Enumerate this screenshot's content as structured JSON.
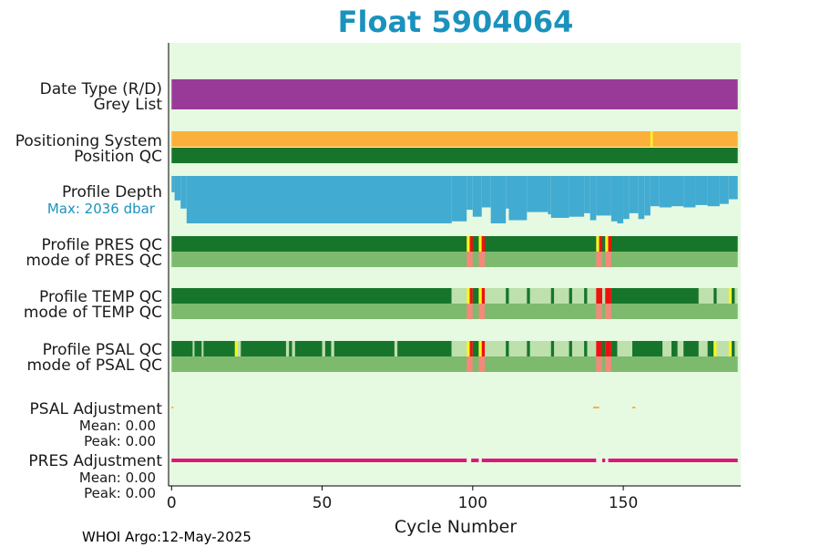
{
  "chart_data": {
    "type": "status-strip",
    "title": "Float 5904064",
    "xlabel": "Cycle Number",
    "xlim": [
      -1,
      189
    ],
    "xticks": [
      0,
      50,
      100,
      150
    ],
    "footer": "WHOI Argo:12-May-2025",
    "colors": {
      "background": "#e6f9e1",
      "purple": "#993a98",
      "orange": "#fbb03b",
      "dark_green": "#17752b",
      "light_green": "#7dba6e",
      "pale_green": "#bde0ad",
      "red": "#ee1010",
      "salmon": "#f3897a",
      "yellow": "#f7f520",
      "blue": "#42abd1",
      "magenta": "#e0157a"
    },
    "labels": {
      "date_type": "Date Type (R/D)",
      "grey_list": "Grey List",
      "positioning": "Positioning System",
      "position_qc": "Position QC",
      "profile_depth": "Profile Depth",
      "max_depth": "Max: 2036 dbar",
      "pres_qc": "Profile PRES QC",
      "pres_mode": "mode of PRES QC",
      "temp_qc": "Profile TEMP QC",
      "temp_mode": "mode of TEMP QC",
      "psal_qc": "Profile PSAL QC",
      "psal_mode": "mode of PSAL QC",
      "psal_adj": "PSAL Adjustment",
      "psal_mean": "Mean: 0.00",
      "psal_peak": "Peak: 0.00",
      "pres_adj": "PRES Adjustment",
      "pres_mean": "Mean: 0.00",
      "pres_peak": "Peak: 0.00"
    },
    "rows": {
      "date_type": [
        {
          "from": 0,
          "to": 188,
          "color": "purple"
        }
      ],
      "positioning": [
        {
          "from": 0,
          "to": 188,
          "color": "orange"
        },
        {
          "from": 159,
          "to": 159.8,
          "color": "yellow"
        }
      ],
      "position_qc": [
        {
          "from": 0,
          "to": 188,
          "color": "dark_green"
        }
      ],
      "pres_qc": [
        {
          "from": 0,
          "to": 188,
          "color": "dark_green"
        },
        {
          "from": 98,
          "to": 99,
          "color": "yellow"
        },
        {
          "from": 99,
          "to": 100,
          "color": "red"
        },
        {
          "from": 102,
          "to": 103,
          "color": "yellow"
        },
        {
          "from": 103,
          "to": 104,
          "color": "red"
        },
        {
          "from": 141,
          "to": 142,
          "color": "yellow"
        },
        {
          "from": 142,
          "to": 143,
          "color": "red"
        },
        {
          "from": 144,
          "to": 145,
          "color": "yellow"
        },
        {
          "from": 145,
          "to": 146,
          "color": "red"
        }
      ],
      "pres_mode": [
        {
          "from": 0,
          "to": 188,
          "color": "light_green"
        },
        {
          "from": 98,
          "to": 100,
          "color": "salmon"
        },
        {
          "from": 102,
          "to": 104,
          "color": "salmon"
        },
        {
          "from": 141,
          "to": 143,
          "color": "salmon"
        },
        {
          "from": 144,
          "to": 146,
          "color": "salmon"
        }
      ],
      "temp_qc": [
        {
          "from": 0,
          "to": 93,
          "color": "dark_green"
        },
        {
          "from": 93,
          "to": 188,
          "color": "pale_green"
        },
        {
          "from": 98,
          "to": 99,
          "color": "yellow"
        },
        {
          "from": 99,
          "to": 100,
          "color": "red"
        },
        {
          "from": 100,
          "to": 102,
          "color": "dark_green"
        },
        {
          "from": 102,
          "to": 103,
          "color": "yellow"
        },
        {
          "from": 103,
          "to": 104,
          "color": "red"
        },
        {
          "from": 111,
          "to": 112,
          "color": "dark_green"
        },
        {
          "from": 118,
          "to": 119,
          "color": "dark_green"
        },
        {
          "from": 126,
          "to": 127,
          "color": "dark_green"
        },
        {
          "from": 132,
          "to": 133,
          "color": "dark_green"
        },
        {
          "from": 137,
          "to": 138,
          "color": "dark_green"
        },
        {
          "from": 141,
          "to": 143,
          "color": "red"
        },
        {
          "from": 144,
          "to": 146,
          "color": "red"
        },
        {
          "from": 146,
          "to": 175,
          "color": "dark_green"
        },
        {
          "from": 180,
          "to": 181,
          "color": "dark_green"
        },
        {
          "from": 185,
          "to": 186,
          "color": "yellow"
        },
        {
          "from": 186,
          "to": 187,
          "color": "dark_green"
        }
      ],
      "temp_mode": [
        {
          "from": 0,
          "to": 188,
          "color": "light_green"
        },
        {
          "from": 98,
          "to": 100,
          "color": "salmon"
        },
        {
          "from": 102,
          "to": 104,
          "color": "salmon"
        },
        {
          "from": 141,
          "to": 143,
          "color": "salmon"
        },
        {
          "from": 144,
          "to": 146,
          "color": "salmon"
        }
      ],
      "psal_qc": [
        {
          "from": 0,
          "to": 93,
          "color": "dark_green"
        },
        {
          "from": 93,
          "to": 188,
          "color": "pale_green"
        },
        {
          "from": 7,
          "to": 7.6,
          "color": "pale_green"
        },
        {
          "from": 10,
          "to": 10.6,
          "color": "pale_green"
        },
        {
          "from": 21,
          "to": 22,
          "color": "yellow"
        },
        {
          "from": 22,
          "to": 23,
          "color": "pale_green"
        },
        {
          "from": 38,
          "to": 39,
          "color": "pale_green"
        },
        {
          "from": 40,
          "to": 41,
          "color": "pale_green"
        },
        {
          "from": 50,
          "to": 51,
          "color": "pale_green"
        },
        {
          "from": 53,
          "to": 54,
          "color": "pale_green"
        },
        {
          "from": 74,
          "to": 75,
          "color": "pale_green"
        },
        {
          "from": 98,
          "to": 99,
          "color": "yellow"
        },
        {
          "from": 99,
          "to": 100,
          "color": "red"
        },
        {
          "from": 100,
          "to": 102,
          "color": "dark_green"
        },
        {
          "from": 102,
          "to": 103,
          "color": "yellow"
        },
        {
          "from": 103,
          "to": 104,
          "color": "red"
        },
        {
          "from": 111,
          "to": 112,
          "color": "dark_green"
        },
        {
          "from": 118,
          "to": 119,
          "color": "dark_green"
        },
        {
          "from": 126,
          "to": 127,
          "color": "dark_green"
        },
        {
          "from": 132,
          "to": 133,
          "color": "dark_green"
        },
        {
          "from": 137,
          "to": 138,
          "color": "dark_green"
        },
        {
          "from": 141,
          "to": 143,
          "color": "red"
        },
        {
          "from": 143,
          "to": 144,
          "color": "dark_green"
        },
        {
          "from": 144,
          "to": 146,
          "color": "red"
        },
        {
          "from": 146,
          "to": 148,
          "color": "dark_green"
        },
        {
          "from": 153,
          "to": 163,
          "color": "dark_green"
        },
        {
          "from": 166,
          "to": 168,
          "color": "dark_green"
        },
        {
          "from": 170,
          "to": 175,
          "color": "dark_green"
        },
        {
          "from": 178,
          "to": 180,
          "color": "dark_green"
        },
        {
          "from": 180,
          "to": 181,
          "color": "yellow"
        },
        {
          "from": 185,
          "to": 186,
          "color": "yellow"
        },
        {
          "from": 186,
          "to": 187,
          "color": "dark_green"
        }
      ],
      "psal_mode": [
        {
          "from": 0,
          "to": 188,
          "color": "light_green"
        },
        {
          "from": 98,
          "to": 100,
          "color": "salmon"
        },
        {
          "from": 102,
          "to": 104,
          "color": "salmon"
        },
        {
          "from": 141,
          "to": 143,
          "color": "salmon"
        },
        {
          "from": 144,
          "to": 146,
          "color": "salmon"
        }
      ]
    },
    "profile_depth_dbar": {
      "max": 2036,
      "breakpoints": [
        {
          "from": 0,
          "to": 1,
          "depth": 700
        },
        {
          "from": 1,
          "to": 3,
          "depth": 1050
        },
        {
          "from": 3,
          "to": 5,
          "depth": 1400
        },
        {
          "from": 5,
          "to": 93,
          "depth": 2036
        },
        {
          "from": 93,
          "to": 98,
          "depth": 1950
        },
        {
          "from": 98,
          "to": 100,
          "depth": 1450
        },
        {
          "from": 100,
          "to": 103,
          "depth": 1750
        },
        {
          "from": 103,
          "to": 106,
          "depth": 1350
        },
        {
          "from": 106,
          "to": 111,
          "depth": 2036
        },
        {
          "from": 111,
          "to": 112,
          "depth": 1400
        },
        {
          "from": 112,
          "to": 118,
          "depth": 1900
        },
        {
          "from": 118,
          "to": 125,
          "depth": 1550
        },
        {
          "from": 125,
          "to": 126,
          "depth": 1650
        },
        {
          "from": 126,
          "to": 132,
          "depth": 1800
        },
        {
          "from": 132,
          "to": 137,
          "depth": 1750
        },
        {
          "from": 137,
          "to": 139,
          "depth": 1600
        },
        {
          "from": 139,
          "to": 141,
          "depth": 1900
        },
        {
          "from": 141,
          "to": 146,
          "depth": 1700
        },
        {
          "from": 146,
          "to": 148,
          "depth": 1950
        },
        {
          "from": 148,
          "to": 150,
          "depth": 2036
        },
        {
          "from": 150,
          "to": 152,
          "depth": 1850
        },
        {
          "from": 152,
          "to": 155,
          "depth": 1600
        },
        {
          "from": 155,
          "to": 157,
          "depth": 1850
        },
        {
          "from": 157,
          "to": 159,
          "depth": 1700
        },
        {
          "from": 159,
          "to": 162,
          "depth": 1300
        },
        {
          "from": 162,
          "to": 166,
          "depth": 1350
        },
        {
          "from": 166,
          "to": 170,
          "depth": 1300
        },
        {
          "from": 170,
          "to": 174,
          "depth": 1350
        },
        {
          "from": 174,
          "to": 178,
          "depth": 1250
        },
        {
          "from": 178,
          "to": 182,
          "depth": 1300
        },
        {
          "from": 182,
          "to": 185,
          "depth": 1200
        },
        {
          "from": 185,
          "to": 188,
          "depth": 1000
        }
      ]
    },
    "adjustments": {
      "psal_marks": [
        {
          "from": 0,
          "to": 0.6,
          "color": "orange"
        },
        {
          "from": 140,
          "to": 142,
          "color": "orange"
        },
        {
          "from": 153,
          "to": 154,
          "color": "orange"
        }
      ],
      "pres_gaps": [
        [
          98,
          99.5
        ],
        [
          102,
          103
        ],
        [
          141,
          143
        ],
        [
          144,
          145
        ]
      ]
    }
  }
}
